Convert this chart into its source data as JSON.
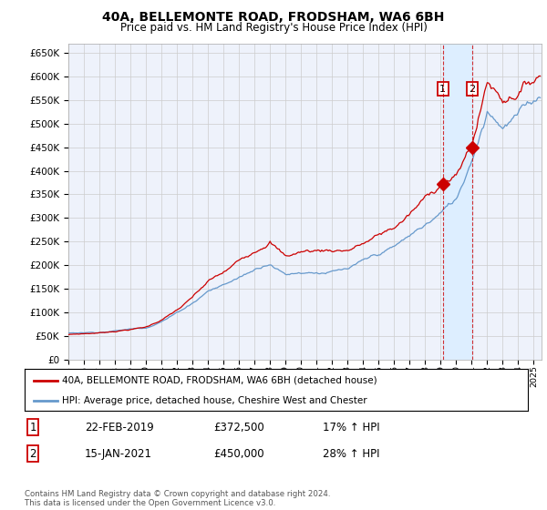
{
  "title": "40A, BELLEMONTE ROAD, FRODSHAM, WA6 6BH",
  "subtitle": "Price paid vs. HM Land Registry's House Price Index (HPI)",
  "legend_line1": "40A, BELLEMONTE ROAD, FRODSHAM, WA6 6BH (detached house)",
  "legend_line2": "HPI: Average price, detached house, Cheshire West and Chester",
  "footnote": "Contains HM Land Registry data © Crown copyright and database right 2024.\nThis data is licensed under the Open Government Licence v3.0.",
  "sale1_date": "22-FEB-2019",
  "sale1_price": "£372,500",
  "sale1_hpi": "17% ↑ HPI",
  "sale2_date": "15-JAN-2021",
  "sale2_price": "£450,000",
  "sale2_hpi": "28% ↑ HPI",
  "sale1_x": 2019.13,
  "sale1_y": 372500,
  "sale2_x": 2021.04,
  "sale2_y": 450000,
  "red_color": "#cc0000",
  "blue_color": "#6699cc",
  "shading_color": "#ddeeff",
  "chart_bg": "#eef2fb",
  "grid_color": "#cccccc",
  "ylim": [
    0,
    670000
  ],
  "xlim_start": 1995.0,
  "xlim_end": 2025.5
}
